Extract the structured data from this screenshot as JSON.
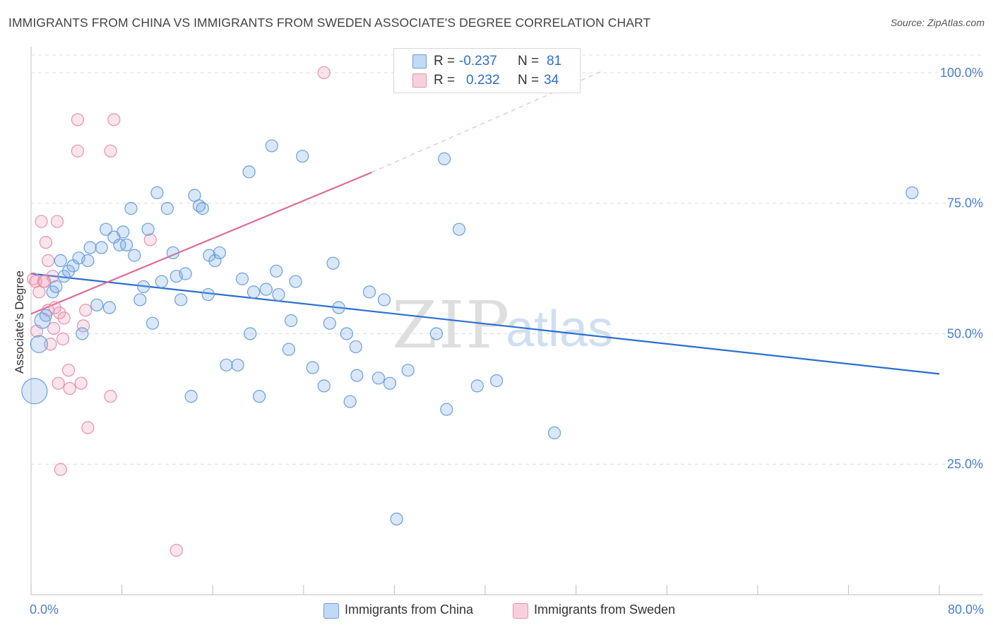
{
  "header": {
    "title": "IMMIGRANTS FROM CHINA VS IMMIGRANTS FROM SWEDEN ASSOCIATE'S DEGREE CORRELATION CHART",
    "source": "Source: ZipAtlas.com"
  },
  "watermark": {
    "zip": "ZIP",
    "atlas": "atlas"
  },
  "stats_legend": {
    "rows": [
      {
        "r_label": "R =",
        "r_value": "-0.237",
        "n_label": "N =",
        "n_value": "81"
      },
      {
        "r_label": "R =",
        "r_value": "0.232",
        "n_label": "N =",
        "n_value": "34"
      }
    ]
  },
  "bottom_legend": {
    "items": [
      {
        "label": "Immigrants from China"
      },
      {
        "label": "Immigrants from Sweden"
      }
    ]
  },
  "colors": {
    "china_fill": "rgba(120,170,230,0.28)",
    "china_stroke": "#6a9fdc",
    "china_line": "#2a6fcf",
    "sweden_fill": "rgba(240,150,180,0.25)",
    "sweden_stroke": "#e68fae",
    "sweden_line": "#e06b96",
    "grid": "#dcdcdc",
    "tick_label": "#4a7fd0",
    "axis": "#cccccc"
  },
  "chart_data": {
    "type": "scatter",
    "title": "IMMIGRANTS FROM CHINA VS IMMIGRANTS FROM SWEDEN ASSOCIATE'S DEGREE CORRELATION CHART",
    "xlabel": "",
    "ylabel": "Associate's Degree",
    "xlim": [
      0,
      80
    ],
    "ylim": [
      0,
      105
    ],
    "x_tick_labels": [
      {
        "value": 0,
        "label": "0.0%"
      },
      {
        "value": 80,
        "label": "80.0%"
      }
    ],
    "y_tick_labels": [
      {
        "value": 25,
        "label": "25.0%"
      },
      {
        "value": 50,
        "label": "50.0%"
      },
      {
        "value": 75,
        "label": "75.0%"
      },
      {
        "value": 100,
        "label": "100.0%"
      }
    ],
    "grid": true,
    "series": [
      {
        "name": "Immigrants from China",
        "R": -0.237,
        "N": 81,
        "trend": {
          "x": [
            0,
            80
          ],
          "y": [
            61.5,
            42.3
          ]
        },
        "points": [
          {
            "x": 0.3,
            "y": 39,
            "s": 18
          },
          {
            "x": 0.7,
            "y": 48,
            "s": 12
          },
          {
            "x": 1.0,
            "y": 52.5,
            "s": 11
          },
          {
            "x": 1.3,
            "y": 53.5
          },
          {
            "x": 1.9,
            "y": 58
          },
          {
            "x": 2.2,
            "y": 59
          },
          {
            "x": 2.6,
            "y": 64
          },
          {
            "x": 2.9,
            "y": 61
          },
          {
            "x": 3.3,
            "y": 62
          },
          {
            "x": 3.7,
            "y": 63
          },
          {
            "x": 4.2,
            "y": 64.5
          },
          {
            "x": 4.5,
            "y": 50
          },
          {
            "x": 5.0,
            "y": 64
          },
          {
            "x": 5.2,
            "y": 66.5
          },
          {
            "x": 5.8,
            "y": 55.5
          },
          {
            "x": 6.2,
            "y": 66.5
          },
          {
            "x": 6.6,
            "y": 70
          },
          {
            "x": 6.9,
            "y": 55
          },
          {
            "x": 7.3,
            "y": 68.5
          },
          {
            "x": 7.8,
            "y": 67
          },
          {
            "x": 8.1,
            "y": 69.5
          },
          {
            "x": 8.4,
            "y": 67
          },
          {
            "x": 8.8,
            "y": 74
          },
          {
            "x": 9.1,
            "y": 65
          },
          {
            "x": 9.6,
            "y": 56.5
          },
          {
            "x": 9.9,
            "y": 59
          },
          {
            "x": 10.3,
            "y": 70
          },
          {
            "x": 10.7,
            "y": 52
          },
          {
            "x": 11.1,
            "y": 77
          },
          {
            "x": 11.5,
            "y": 60
          },
          {
            "x": 12.0,
            "y": 74
          },
          {
            "x": 12.5,
            "y": 65.5
          },
          {
            "x": 12.8,
            "y": 61
          },
          {
            "x": 13.2,
            "y": 56.5
          },
          {
            "x": 13.6,
            "y": 61.5
          },
          {
            "x": 14.1,
            "y": 38
          },
          {
            "x": 14.4,
            "y": 76.5
          },
          {
            "x": 14.8,
            "y": 74.5
          },
          {
            "x": 15.1,
            "y": 74
          },
          {
            "x": 15.6,
            "y": 57.5
          },
          {
            "x": 15.7,
            "y": 65
          },
          {
            "x": 16.2,
            "y": 64
          },
          {
            "x": 16.6,
            "y": 65.5
          },
          {
            "x": 17.2,
            "y": 44
          },
          {
            "x": 18.2,
            "y": 44
          },
          {
            "x": 18.6,
            "y": 60.5
          },
          {
            "x": 19.2,
            "y": 81
          },
          {
            "x": 19.3,
            "y": 50
          },
          {
            "x": 19.6,
            "y": 58
          },
          {
            "x": 20.1,
            "y": 38
          },
          {
            "x": 20.7,
            "y": 58.5
          },
          {
            "x": 21.2,
            "y": 86
          },
          {
            "x": 21.6,
            "y": 62
          },
          {
            "x": 21.8,
            "y": 57.5
          },
          {
            "x": 22.7,
            "y": 47
          },
          {
            "x": 22.9,
            "y": 52.5
          },
          {
            "x": 23.3,
            "y": 60
          },
          {
            "x": 23.9,
            "y": 84
          },
          {
            "x": 24.8,
            "y": 43.5
          },
          {
            "x": 25.8,
            "y": 40
          },
          {
            "x": 26.3,
            "y": 52
          },
          {
            "x": 26.6,
            "y": 63.5
          },
          {
            "x": 27.1,
            "y": 55
          },
          {
            "x": 27.8,
            "y": 50
          },
          {
            "x": 28.1,
            "y": 37
          },
          {
            "x": 28.6,
            "y": 47.5
          },
          {
            "x": 28.7,
            "y": 42
          },
          {
            "x": 29.8,
            "y": 58
          },
          {
            "x": 30.6,
            "y": 41.5
          },
          {
            "x": 31.1,
            "y": 56.5
          },
          {
            "x": 31.6,
            "y": 40.5
          },
          {
            "x": 32.2,
            "y": 14.5
          },
          {
            "x": 33.2,
            "y": 43
          },
          {
            "x": 35.7,
            "y": 50
          },
          {
            "x": 36.4,
            "y": 83.5
          },
          {
            "x": 36.6,
            "y": 35.5
          },
          {
            "x": 37.7,
            "y": 70
          },
          {
            "x": 39.3,
            "y": 40
          },
          {
            "x": 41.0,
            "y": 41
          },
          {
            "x": 46.1,
            "y": 31
          },
          {
            "x": 77.6,
            "y": 77
          }
        ]
      },
      {
        "name": "Immigrants from Sweden",
        "R": 0.232,
        "N": 34,
        "trend": {
          "x": [
            0,
            30
          ],
          "y": [
            53.8,
            80.9
          ]
        },
        "trend_dashed": {
          "x": [
            30,
            50.5
          ],
          "y": [
            80.9,
            100.5
          ]
        },
        "points": [
          {
            "x": 0.2,
            "y": 60.5
          },
          {
            "x": 0.4,
            "y": 60
          },
          {
            "x": 0.5,
            "y": 50.5
          },
          {
            "x": 0.7,
            "y": 58
          },
          {
            "x": 0.9,
            "y": 71.5
          },
          {
            "x": 1.1,
            "y": 60
          },
          {
            "x": 1.3,
            "y": 67.5
          },
          {
            "x": 1.5,
            "y": 64
          },
          {
            "x": 1.5,
            "y": 54.5
          },
          {
            "x": 1.7,
            "y": 48
          },
          {
            "x": 1.9,
            "y": 61
          },
          {
            "x": 2.0,
            "y": 51
          },
          {
            "x": 2.1,
            "y": 55
          },
          {
            "x": 2.3,
            "y": 71.5
          },
          {
            "x": 2.4,
            "y": 40.5
          },
          {
            "x": 2.5,
            "y": 54
          },
          {
            "x": 2.6,
            "y": 24
          },
          {
            "x": 2.8,
            "y": 49
          },
          {
            "x": 2.9,
            "y": 53
          },
          {
            "x": 3.3,
            "y": 43
          },
          {
            "x": 3.4,
            "y": 39.5
          },
          {
            "x": 4.1,
            "y": 91
          },
          {
            "x": 4.1,
            "y": 85
          },
          {
            "x": 4.4,
            "y": 40.5
          },
          {
            "x": 4.6,
            "y": 51.5
          },
          {
            "x": 4.8,
            "y": 54.5
          },
          {
            "x": 5.0,
            "y": 32
          },
          {
            "x": 7.0,
            "y": 38
          },
          {
            "x": 7.0,
            "y": 85
          },
          {
            "x": 7.3,
            "y": 91
          },
          {
            "x": 10.5,
            "y": 68
          },
          {
            "x": 12.8,
            "y": 8.5
          },
          {
            "x": 25.8,
            "y": 100
          },
          {
            "x": 1.2,
            "y": 60
          }
        ]
      }
    ]
  }
}
